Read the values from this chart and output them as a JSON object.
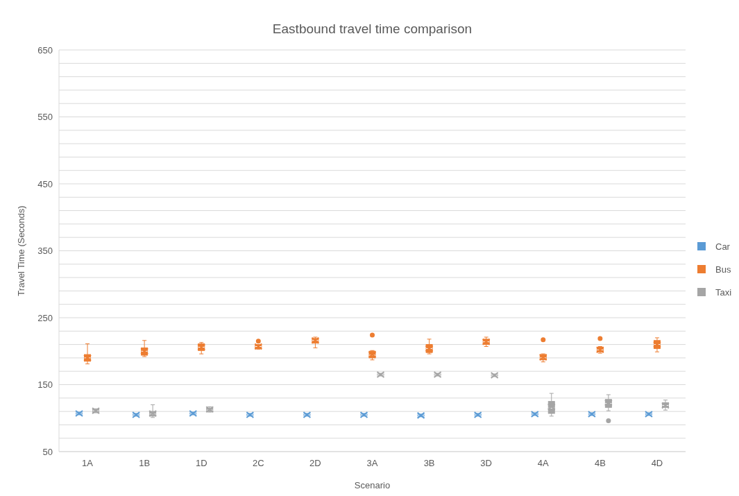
{
  "chart_data": {
    "type": "box",
    "title": "Eastbound travel time comparison",
    "xlabel": "Scenario",
    "ylabel": "Travel Time (Seconds)",
    "categories": [
      "1A",
      "1B",
      "1D",
      "2C",
      "2D",
      "3A",
      "3B",
      "3D",
      "4A",
      "4B",
      "4D"
    ],
    "ylim": [
      50,
      650
    ],
    "yticks": [
      50,
      {
        "value": 70,
        "label": null
      },
      {
        "value": 90,
        "label": null
      },
      {
        "value": 110,
        "label": null
      },
      {
        "value": 130,
        "label": null
      },
      150,
      {
        "value": 170,
        "label": null
      },
      {
        "value": 190,
        "label": null
      },
      {
        "value": 210,
        "label": null
      },
      {
        "value": 230,
        "label": null
      },
      250,
      {
        "value": 270,
        "label": null
      },
      {
        "value": 290,
        "label": null
      },
      {
        "value": 310,
        "label": null
      },
      {
        "value": 330,
        "label": null
      },
      350,
      {
        "value": 370,
        "label": null
      },
      {
        "value": 390,
        "label": null
      },
      {
        "value": 410,
        "label": null
      },
      {
        "value": 430,
        "label": null
      },
      450,
      {
        "value": 470,
        "label": null
      },
      {
        "value": 490,
        "label": null
      },
      {
        "value": 510,
        "label": null
      },
      {
        "value": 530,
        "label": null
      },
      550,
      {
        "value": 570,
        "label": null
      },
      {
        "value": 590,
        "label": null
      },
      {
        "value": 610,
        "label": null
      },
      {
        "value": 630,
        "label": null
      },
      650
    ],
    "grid": "y",
    "legend": "right",
    "series": [
      {
        "name": "Car",
        "color": "#5b9bd5",
        "boxes": [
          {
            "low": 105,
            "q1": 106,
            "median": 107,
            "q3": 108,
            "high": 109,
            "mean": 107
          },
          {
            "low": 103,
            "q1": 104,
            "median": 105,
            "q3": 106,
            "high": 107,
            "mean": 105
          },
          {
            "low": 105,
            "q1": 106,
            "median": 107,
            "q3": 108,
            "high": 109,
            "mean": 107
          },
          {
            "low": 103,
            "q1": 104,
            "median": 105,
            "q3": 106,
            "high": 107,
            "mean": 105
          },
          {
            "low": 103,
            "q1": 104,
            "median": 105,
            "q3": 106,
            "high": 107,
            "mean": 105
          },
          {
            "low": 103,
            "q1": 104,
            "median": 105,
            "q3": 106,
            "high": 107,
            "mean": 105
          },
          {
            "low": 102,
            "q1": 103,
            "median": 104,
            "q3": 105,
            "high": 106,
            "mean": 104
          },
          {
            "low": 103,
            "q1": 104,
            "median": 105,
            "q3": 106,
            "high": 107,
            "mean": 105
          },
          {
            "low": 104,
            "q1": 105,
            "median": 106,
            "q3": 107,
            "high": 108,
            "mean": 106
          },
          {
            "low": 104,
            "q1": 105,
            "median": 106,
            "q3": 107,
            "high": 108,
            "mean": 106
          },
          {
            "low": 104,
            "q1": 105,
            "median": 106,
            "q3": 107,
            "high": 108,
            "mean": 106
          }
        ]
      },
      {
        "name": "Bus",
        "color": "#ed7d31",
        "boxes": [
          {
            "low": 181,
            "q1": 185,
            "median": 190,
            "q3": 195,
            "high": 211,
            "mean": 190
          },
          {
            "low": 192,
            "q1": 194,
            "median": 200,
            "q3": 205,
            "high": 216,
            "mean": 200
          },
          {
            "low": 196,
            "q1": 201,
            "median": 206,
            "q3": 211,
            "high": 213,
            "mean": 206
          },
          {
            "low": 203,
            "q1": 204,
            "median": 207,
            "q3": 209,
            "high": 210,
            "mean": 207,
            "outliers": [
              215
            ]
          },
          {
            "low": 205,
            "q1": 212,
            "median": 216,
            "q3": 219,
            "high": 221,
            "mean": 216
          },
          {
            "low": 187,
            "q1": 190,
            "median": 194,
            "q3": 200,
            "high": 201,
            "mean": 195,
            "outliers": [
              224
            ]
          },
          {
            "low": 196,
            "q1": 198,
            "median": 204,
            "q3": 210,
            "high": 218,
            "mean": 204
          },
          {
            "low": 207,
            "q1": 210,
            "median": 214,
            "q3": 218,
            "high": 221,
            "mean": 214
          },
          {
            "low": 184,
            "q1": 187,
            "median": 190,
            "q3": 195,
            "high": 196,
            "mean": 191,
            "outliers": [
              217
            ]
          },
          {
            "low": 197,
            "q1": 199,
            "median": 202,
            "q3": 206,
            "high": 207,
            "mean": 202,
            "outliers": [
              219
            ]
          },
          {
            "low": 199,
            "q1": 204,
            "median": 210,
            "q3": 216,
            "high": 220,
            "mean": 210
          }
        ]
      },
      {
        "name": "Taxi",
        "color": "#a5a5a5",
        "boxes": [
          {
            "low": 108,
            "q1": 109,
            "median": 111,
            "q3": 113,
            "high": 114,
            "mean": 111
          },
          {
            "low": 101,
            "q1": 103,
            "median": 106,
            "q3": 110,
            "high": 120,
            "mean": 107
          },
          {
            "low": 109,
            "q1": 110,
            "median": 112,
            "q3": 115,
            "high": 117,
            "mean": 113
          },
          null,
          null,
          {
            "low": 163,
            "q1": 164,
            "median": 165,
            "q3": 166,
            "high": 167,
            "mean": 165
          },
          {
            "low": 163,
            "q1": 164,
            "median": 165,
            "q3": 166,
            "high": 167,
            "mean": 165
          },
          {
            "low": 162,
            "q1": 163,
            "median": 164,
            "q3": 165,
            "high": 166,
            "mean": 164
          },
          {
            "low": 103,
            "q1": 107,
            "median": 115,
            "q3": 125,
            "high": 137,
            "mean": 117
          },
          {
            "low": 111,
            "q1": 116,
            "median": 122,
            "q3": 128,
            "high": 135,
            "mean": 123,
            "outliers": [
              96
            ]
          },
          {
            "low": 112,
            "q1": 116,
            "median": 119,
            "q3": 123,
            "high": 127,
            "mean": 119
          }
        ]
      }
    ]
  }
}
